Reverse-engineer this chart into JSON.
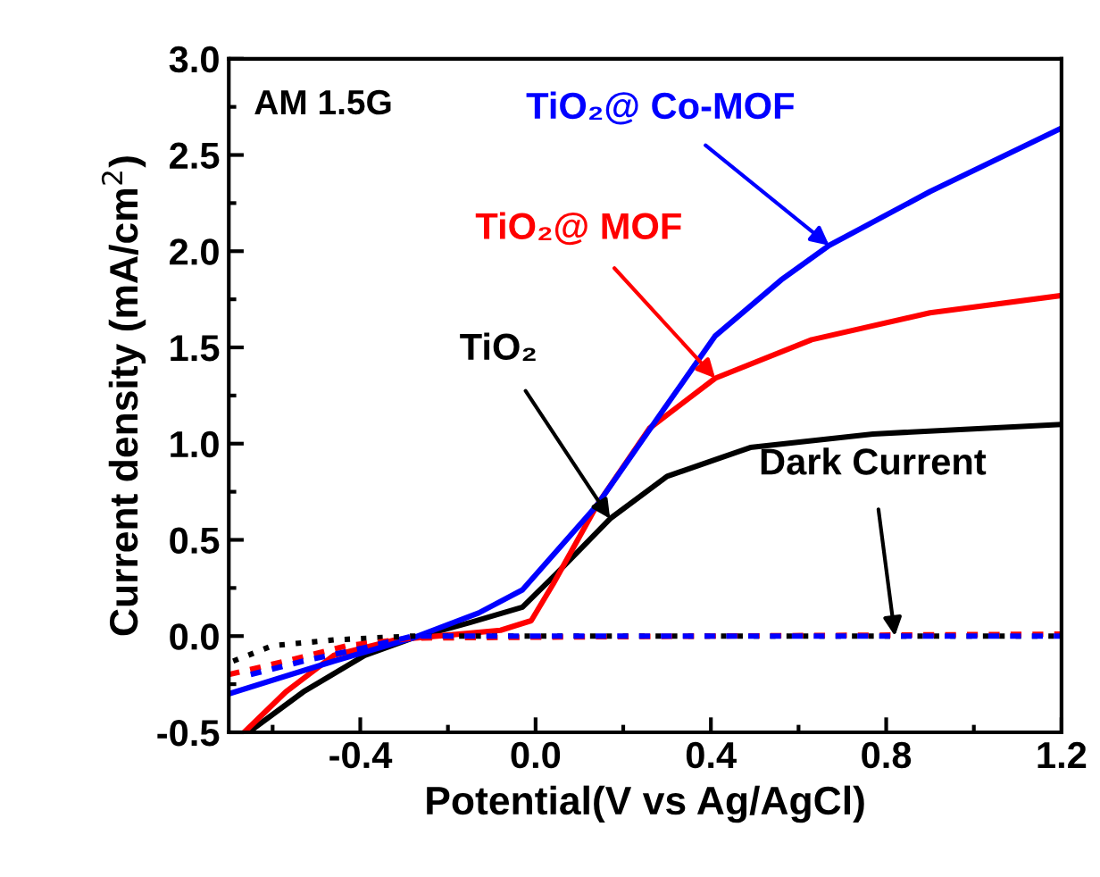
{
  "chart_data": {
    "type": "line",
    "xlabel": "Potential(V vs Ag/AgCl)",
    "ylabel": "Current density (mA/cm$^{2}$)",
    "xlim": [
      -0.7,
      1.2
    ],
    "ylim": [
      -0.5,
      3.0
    ],
    "xticks": [
      {
        "value": -0.4,
        "label": "-0.4"
      },
      {
        "value": 0.0,
        "label": "0.0"
      },
      {
        "value": 0.4,
        "label": "0.4"
      },
      {
        "value": 0.8,
        "label": "0.8"
      },
      {
        "value": 1.2,
        "label": "1.2"
      }
    ],
    "yticks": [
      {
        "value": -0.5,
        "label": "-0.5"
      },
      {
        "value": 0.0,
        "label": "0.0"
      },
      {
        "value": 0.5,
        "label": "0.5"
      },
      {
        "value": 1.0,
        "label": "1.0"
      },
      {
        "value": 1.5,
        "label": "1.5"
      },
      {
        "value": 2.0,
        "label": "2.0"
      },
      {
        "value": 2.5,
        "label": "2.5"
      },
      {
        "value": 3.0,
        "label": "3.0"
      }
    ],
    "grid": false,
    "legend": false,
    "marker": "none",
    "series": [
      {
        "color": "#000000",
        "line_style": "solid",
        "x": [
          -0.655,
          -0.53,
          -0.39,
          -0.28,
          -0.15,
          -0.03,
          0.05,
          0.17,
          0.3,
          0.49,
          0.77,
          1.2
        ],
        "values": [
          -0.5,
          -0.29,
          -0.1,
          -0.01,
          0.07,
          0.15,
          0.33,
          0.61,
          0.83,
          0.98,
          1.05,
          1.1
        ]
      },
      {
        "color": "#ff0000",
        "line_style": "solid",
        "x": [
          -0.665,
          -0.57,
          -0.46,
          -0.32,
          -0.08,
          -0.01,
          0.04,
          0.14,
          0.26,
          0.41,
          0.63,
          0.9,
          1.2
        ],
        "values": [
          -0.5,
          -0.29,
          -0.1,
          -0.02,
          0.03,
          0.08,
          0.27,
          0.68,
          1.08,
          1.34,
          1.54,
          1.68,
          1.77
        ]
      },
      {
        "color": "#0000ff",
        "line_style": "solid",
        "x": [
          -0.7,
          -0.46,
          -0.28,
          -0.13,
          -0.03,
          0.14,
          0.29,
          0.41,
          0.56,
          0.67,
          0.9,
          1.2
        ],
        "values": [
          -0.3,
          -0.13,
          -0.01,
          0.12,
          0.24,
          0.68,
          1.17,
          1.56,
          1.85,
          2.03,
          2.31,
          2.64
        ]
      },
      {
        "color": "#000000",
        "line_style": "dotted",
        "x": [
          -0.69,
          -0.6,
          -0.46,
          -0.28,
          0.4,
          1.2
        ],
        "values": [
          -0.13,
          -0.05,
          -0.02,
          0.0,
          0.0,
          0.0
        ]
      },
      {
        "color": "#ff0000",
        "line_style": "dashed",
        "x": [
          -0.7,
          -0.57,
          -0.43,
          -0.28,
          0.4,
          1.2
        ],
        "values": [
          -0.2,
          -0.13,
          -0.05,
          -0.01,
          0.0,
          0.01
        ]
      },
      {
        "color": "#0000ff",
        "line_style": "dashed",
        "x": [
          -0.65,
          -0.53,
          -0.39,
          -0.28,
          0.4,
          1.2
        ],
        "values": [
          -0.2,
          -0.13,
          -0.06,
          0.0,
          0.0,
          0.0
        ]
      }
    ],
    "annotations": [
      {
        "text": "TiO₂",
        "x": 0.17,
        "y": 0.61
      },
      {
        "text": "TiO₂@ MOF",
        "x": 0.41,
        "y": 1.34
      },
      {
        "text": "TiO₂@ Co-MOF",
        "x": 0.67,
        "y": 2.03
      },
      {
        "text": "Dark Current",
        "x": 0.82,
        "y": 0.0
      },
      "AM 1.5G"
    ]
  }
}
